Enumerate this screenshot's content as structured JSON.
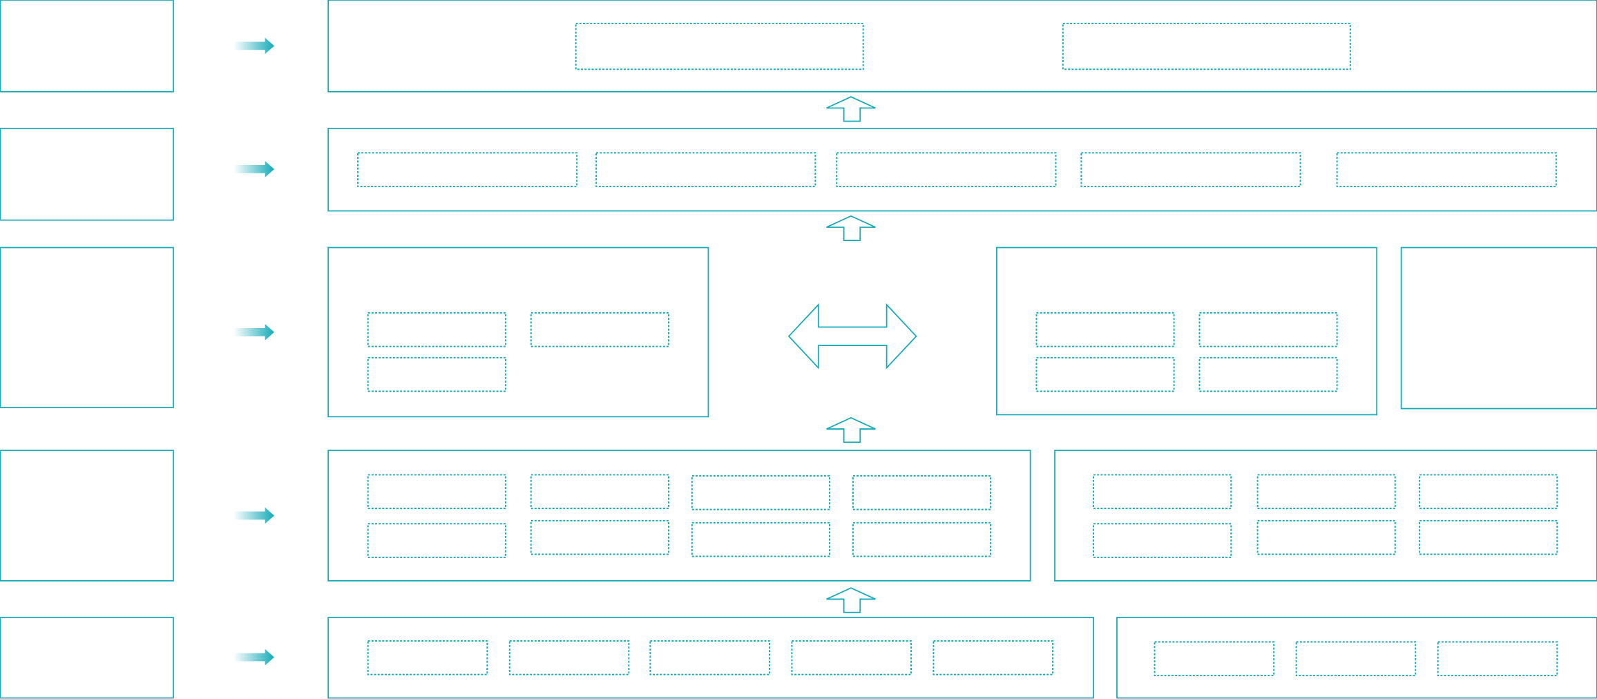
{
  "colors": {
    "accent": "#14abb7",
    "background": "#ffffff"
  },
  "diagram": {
    "type": "layered architecture diagram",
    "layers": 5,
    "text": []
  }
}
